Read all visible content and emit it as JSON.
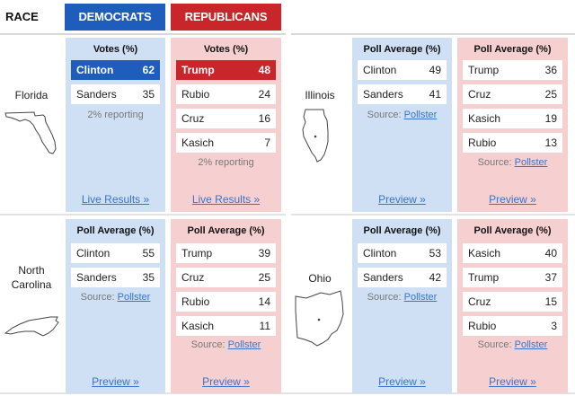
{
  "header": {
    "race_label": "RACE",
    "democrats_label": "DEMOCRATS",
    "republicans_label": "REPUBLICANS"
  },
  "colors": {
    "democrat_blue": "#1f5dbd",
    "republican_red": "#c8262b",
    "dem_panel_bg": "#cfe0f5",
    "rep_panel_bg": "#f6d0d1",
    "link": "#3a73c7"
  },
  "states": {
    "florida": {
      "name": "Florida",
      "map_icon": "florida-outline-icon",
      "dem": {
        "title": "Votes (%)",
        "rows": [
          {
            "name": "Clinton",
            "value": "62"
          },
          {
            "name": "Sanders",
            "value": "35"
          }
        ],
        "note": "2% reporting",
        "link": "Live Results »"
      },
      "rep": {
        "title": "Votes (%)",
        "rows": [
          {
            "name": "Trump",
            "value": "48"
          },
          {
            "name": "Rubio",
            "value": "24"
          },
          {
            "name": "Cruz",
            "value": "16"
          },
          {
            "name": "Kasich",
            "value": "7"
          }
        ],
        "note": "2% reporting",
        "link": "Live Results »"
      }
    },
    "illinois": {
      "name": "Illinois",
      "map_icon": "illinois-outline-icon",
      "dem": {
        "title": "Poll Average (%)",
        "rows": [
          {
            "name": "Clinton",
            "value": "49"
          },
          {
            "name": "Sanders",
            "value": "41"
          }
        ],
        "source_label": "Source:",
        "source_link": "Pollster",
        "link": "Preview »"
      },
      "rep": {
        "title": "Poll Average (%)",
        "rows": [
          {
            "name": "Trump",
            "value": "36"
          },
          {
            "name": "Cruz",
            "value": "25"
          },
          {
            "name": "Kasich",
            "value": "19"
          },
          {
            "name": "Rubio",
            "value": "13"
          }
        ],
        "source_label": "Source:",
        "source_link": "Pollster",
        "link": "Preview »"
      }
    },
    "north_carolina": {
      "name_line1": "North",
      "name_line2": "Carolina",
      "map_icon": "north-carolina-outline-icon",
      "dem": {
        "title": "Poll Average (%)",
        "rows": [
          {
            "name": "Clinton",
            "value": "55"
          },
          {
            "name": "Sanders",
            "value": "35"
          }
        ],
        "source_label": "Source:",
        "source_link": "Pollster",
        "link": "Preview »"
      },
      "rep": {
        "title": "Poll Average (%)",
        "rows": [
          {
            "name": "Trump",
            "value": "39"
          },
          {
            "name": "Cruz",
            "value": "25"
          },
          {
            "name": "Rubio",
            "value": "14"
          },
          {
            "name": "Kasich",
            "value": "11"
          }
        ],
        "source_label": "Source:",
        "source_link": "Pollster",
        "link": "Preview »"
      }
    },
    "ohio": {
      "name": "Ohio",
      "map_icon": "ohio-outline-icon",
      "dem": {
        "title": "Poll Average (%)",
        "rows": [
          {
            "name": "Clinton",
            "value": "53"
          },
          {
            "name": "Sanders",
            "value": "42"
          }
        ],
        "source_label": "Source:",
        "source_link": "Pollster",
        "link": "Preview »"
      },
      "rep": {
        "title": "Poll Average (%)",
        "rows": [
          {
            "name": "Kasich",
            "value": "40"
          },
          {
            "name": "Trump",
            "value": "37"
          },
          {
            "name": "Cruz",
            "value": "15"
          },
          {
            "name": "Rubio",
            "value": "3"
          }
        ],
        "source_label": "Source:",
        "source_link": "Pollster",
        "link": "Preview »"
      }
    }
  }
}
